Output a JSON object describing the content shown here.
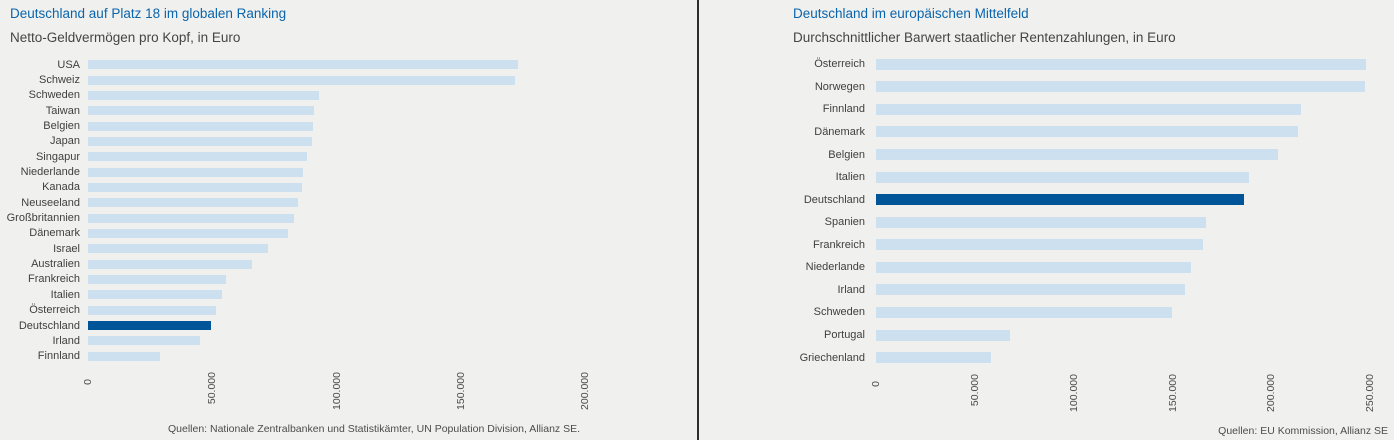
{
  "page": {
    "background_color": "#f0f0ee",
    "divider_color": "#2e2e2e"
  },
  "colors": {
    "bar_light": "#cde0ef",
    "bar_highlight": "#005498",
    "title_blue": "#0a65ad"
  },
  "chart_data": [
    {
      "type": "bar",
      "orientation": "horizontal",
      "title": "Deutschland auf Platz 18 im globalen Ranking",
      "subtitle": "Netto-Geldvermögen pro Kopf, in Euro",
      "source": "Quellen: Nationale Zentralbanken und Statistikämter, UN Population Division, Allianz SE.",
      "highlight": "Deutschland",
      "axis_max": 230000,
      "ticks": [
        {
          "value": 0,
          "label": "0"
        },
        {
          "value": 50000,
          "label": "50.000"
        },
        {
          "value": 100000,
          "label": "100.000"
        },
        {
          "value": 150000,
          "label": "150.000"
        },
        {
          "value": 200000,
          "label": "200.000"
        }
      ],
      "categories": [
        "USA",
        "Schweiz",
        "Schweden",
        "Taiwan",
        "Belgien",
        "Japan",
        "Singapur",
        "Niederlande",
        "Kanada",
        "Neuseeland",
        "Großbritannien",
        "Dänemark",
        "Israel",
        "Australien",
        "Frankreich",
        "Italien",
        "Österreich",
        "Deutschland",
        "Irland",
        "Finnland"
      ],
      "values": [
        173000,
        171500,
        93000,
        91000,
        90500,
        90000,
        88000,
        86500,
        86000,
        84500,
        83000,
        80500,
        72500,
        66000,
        55500,
        54000,
        51500,
        49500,
        45000,
        29000
      ]
    },
    {
      "type": "bar",
      "orientation": "horizontal",
      "title": "Deutschland im europäischen Mittelfeld",
      "subtitle": "Durchschnittlicher Barwert staatlicher Rentenzahlungen, in Euro",
      "source": "Quellen: EU Kommission, Allianz SE",
      "highlight": "Deutschland",
      "axis_max": 260000,
      "ticks": [
        {
          "value": 0,
          "label": "0"
        },
        {
          "value": 50000,
          "label": "50.000"
        },
        {
          "value": 100000,
          "label": "100.000"
        },
        {
          "value": 150000,
          "label": "150.000"
        },
        {
          "value": 200000,
          "label": "200.000"
        },
        {
          "value": 250000,
          "label": "250.000"
        }
      ],
      "categories": [
        "Österreich",
        "Norwegen",
        "Finnland",
        "Dänemark",
        "Belgien",
        "Italien",
        "Deutschland",
        "Spanien",
        "Frankreich",
        "Niederlande",
        "Irland",
        "Schweden",
        "Portugal",
        "Griechenland"
      ],
      "values": [
        248000,
        247500,
        215000,
        213500,
        203500,
        188500,
        186000,
        167000,
        165500,
        159500,
        156500,
        149500,
        68000,
        58000
      ]
    }
  ]
}
